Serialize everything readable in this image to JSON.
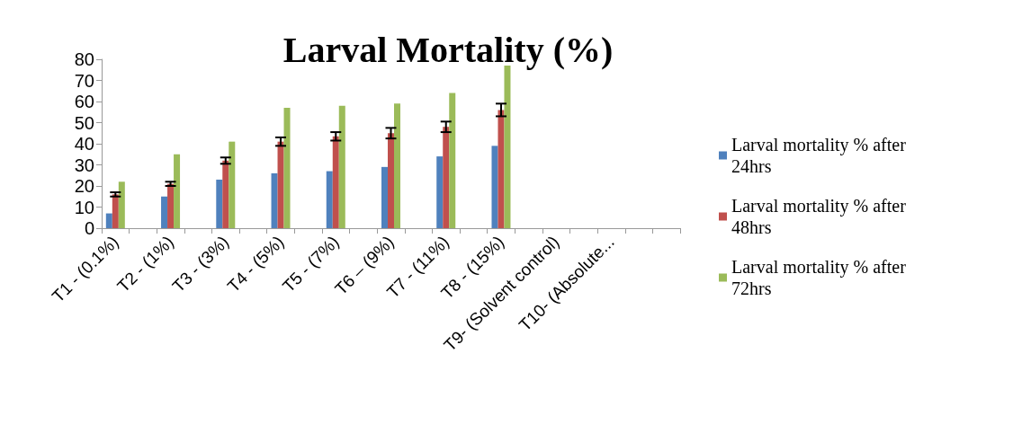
{
  "chart_data": {
    "type": "bar",
    "title": "Larval Mortality (%)",
    "categories": [
      "T1 - (0.1%)",
      null,
      "T2 - (1%)",
      null,
      "T3 - (3%)",
      null,
      "T4 - (5%)",
      null,
      "T5 - (7%)",
      null,
      "T6 – (9%)",
      null,
      "T7 - (11%)",
      null,
      "T8 - (15%)",
      null,
      "T9- (Solvent control)",
      null,
      "T10- (Absolute...",
      null,
      null
    ],
    "series": [
      {
        "name": "Larval mortality % after 24hrs",
        "color": "#4f81bd",
        "values": [
          7,
          null,
          15,
          null,
          23,
          null,
          26,
          null,
          27,
          null,
          29,
          null,
          34,
          null,
          39,
          null,
          0,
          null,
          0,
          null,
          null
        ]
      },
      {
        "name": "Larval mortality % after 48hrs",
        "color": "#c0504d",
        "values": [
          16,
          null,
          21,
          null,
          32,
          null,
          41,
          null,
          43.5,
          null,
          45,
          null,
          48,
          null,
          56,
          null,
          0,
          null,
          0,
          null,
          null
        ],
        "errors": [
          1,
          null,
          1,
          null,
          1.5,
          null,
          2,
          null,
          2,
          null,
          2.5,
          null,
          2.5,
          null,
          3,
          null,
          null,
          null,
          null,
          null,
          null
        ]
      },
      {
        "name": "Larval mortality % after 72hrs",
        "color": "#9bbb59",
        "values": [
          22,
          null,
          35,
          null,
          41,
          null,
          57,
          null,
          58,
          null,
          59,
          null,
          64,
          null,
          77,
          null,
          0,
          null,
          0,
          null,
          null
        ]
      }
    ],
    "ylim": [
      0,
      80
    ],
    "yticks": [
      0,
      10,
      20,
      30,
      40,
      50,
      60,
      70,
      80
    ],
    "grid": false,
    "legend": "right"
  }
}
